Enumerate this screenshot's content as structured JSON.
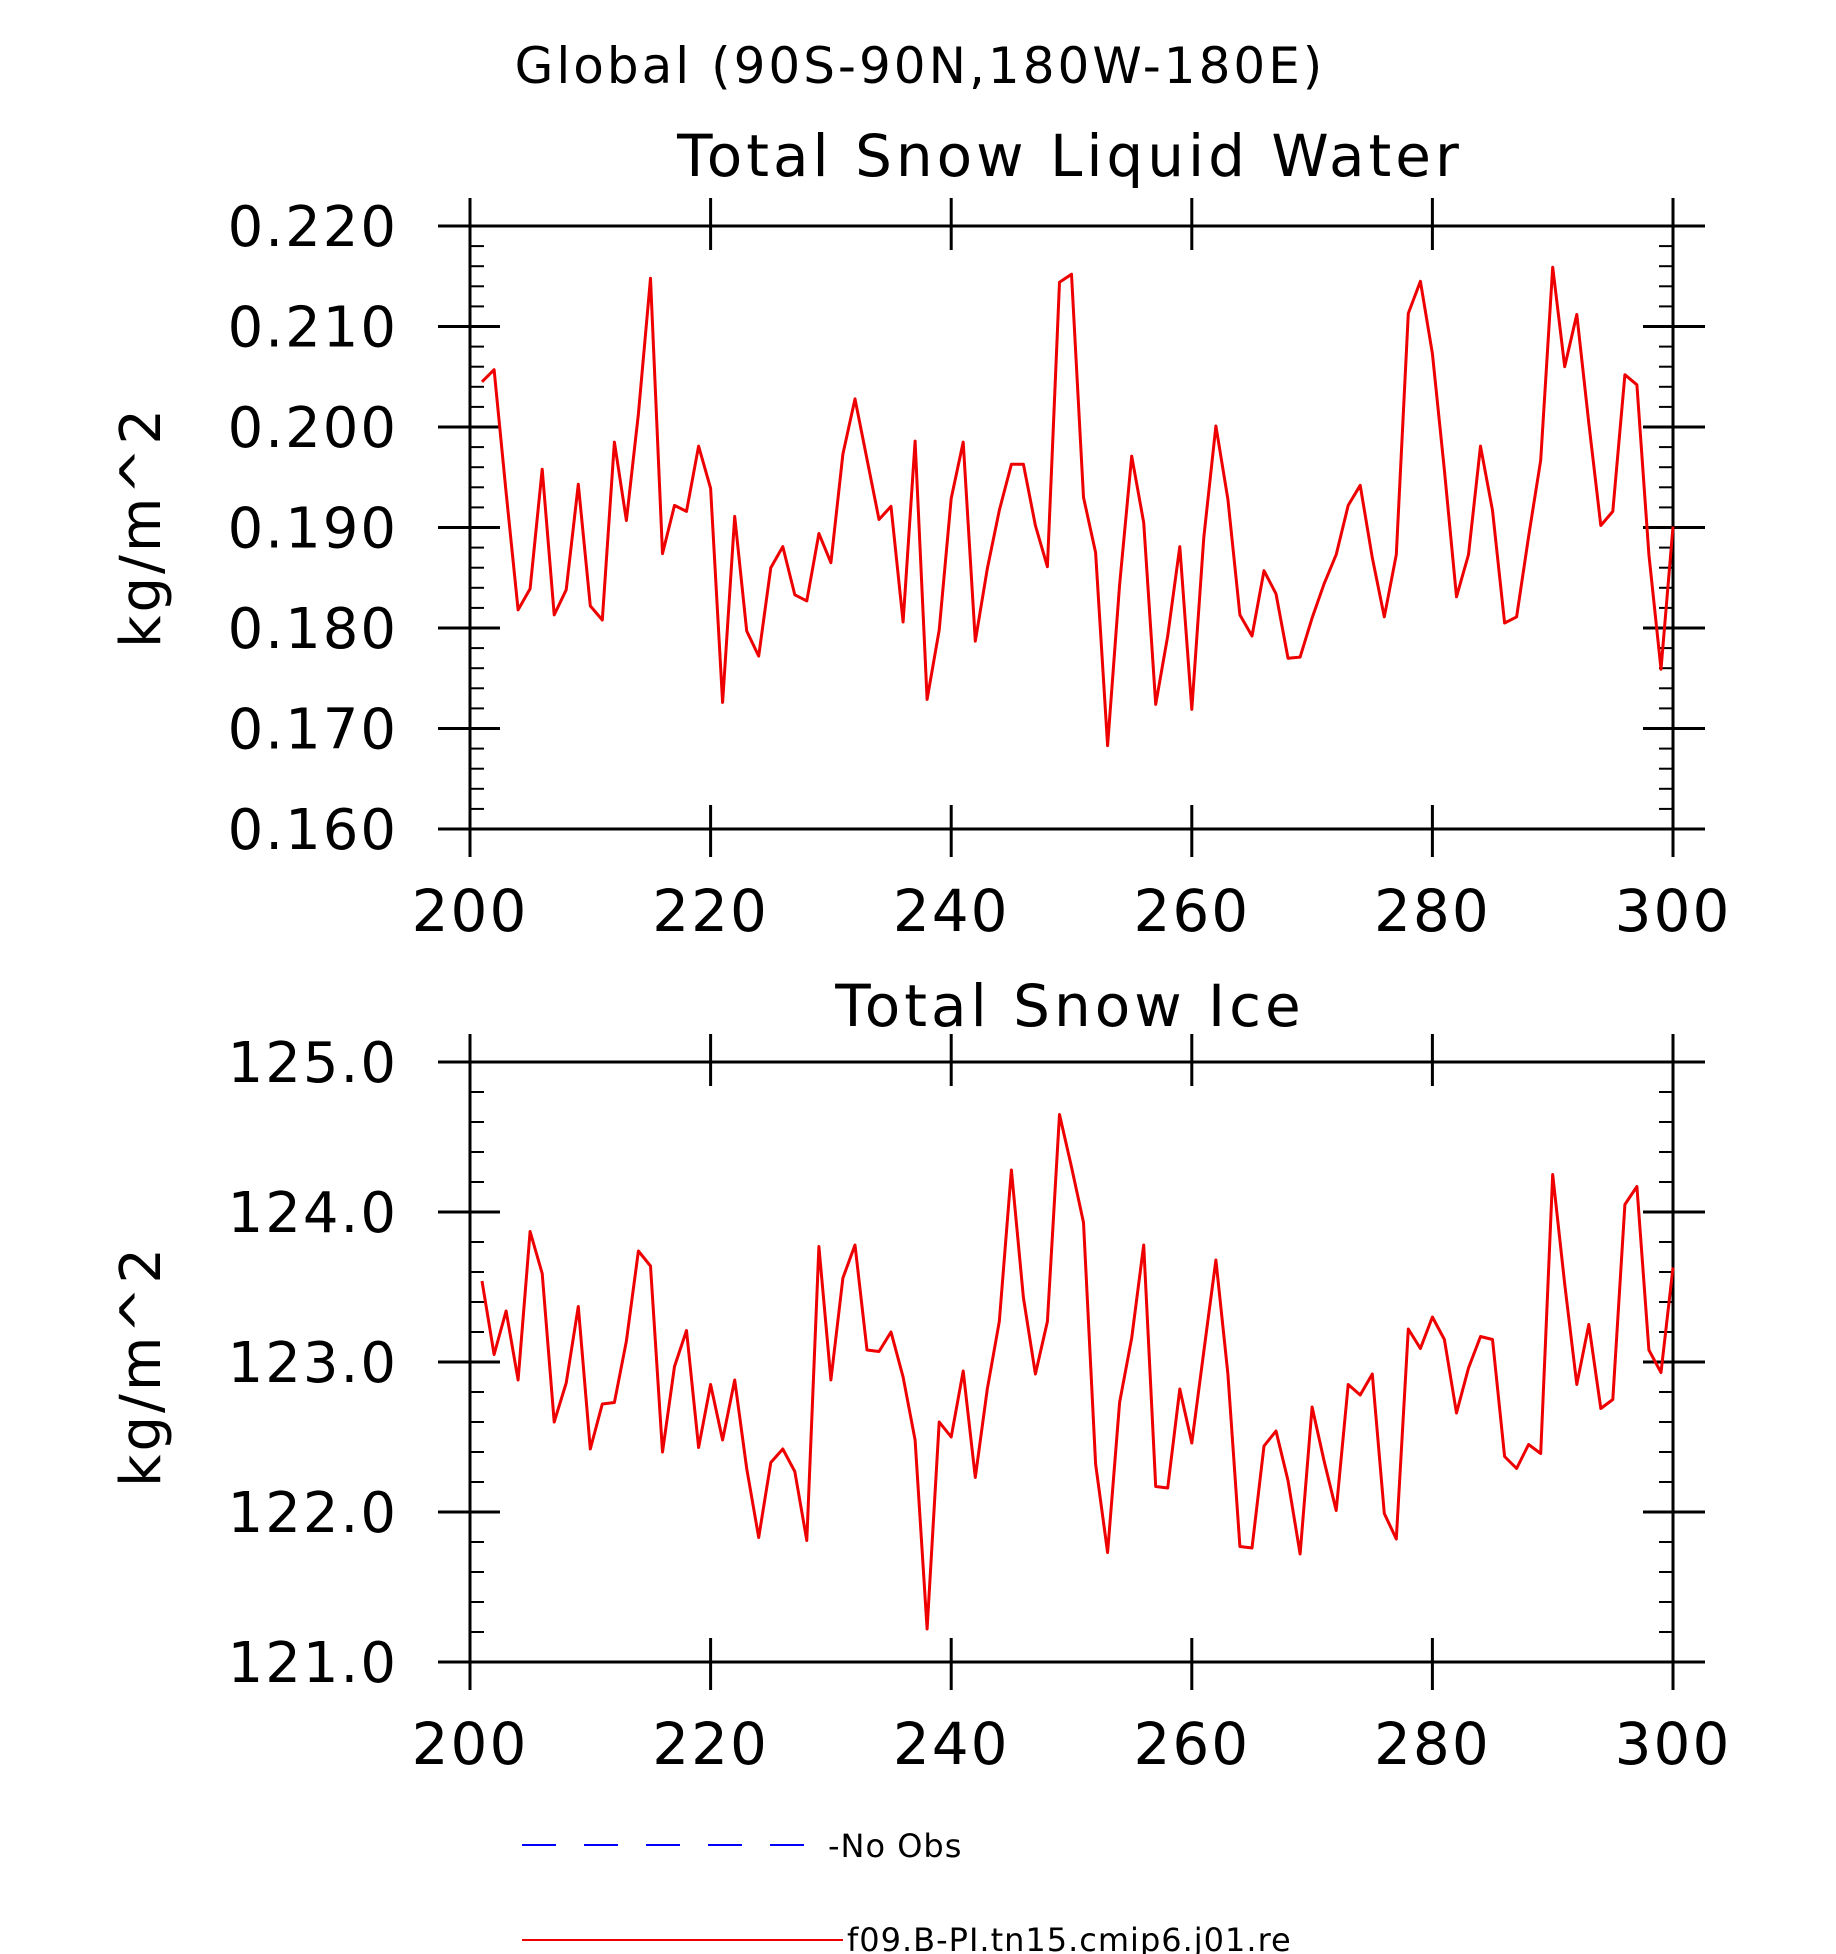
{
  "figure_title": "Global (90S-90N,180W-180E)",
  "chart_data": [
    {
      "type": "line",
      "title": "Total Snow Liquid Water",
      "xlabel": "",
      "ylabel": "kg/m^2",
      "xlim": [
        200,
        300
      ],
      "ylim": [
        0.16,
        0.22
      ],
      "xticks": [
        "200",
        "220",
        "240",
        "260",
        "280",
        "300"
      ],
      "yticks": [
        "0.160",
        "0.170",
        "0.180",
        "0.190",
        "0.200",
        "0.210",
        "0.220"
      ],
      "grid": false,
      "series": [
        {
          "name": "f09.B-PI.tn15.cmip6.j01.re",
          "color": "#ee0000",
          "x": [
            201,
            202,
            203,
            204,
            205,
            206,
            207,
            208,
            209,
            210,
            211,
            212,
            213,
            214,
            215,
            216,
            217,
            218,
            219,
            220,
            221,
            222,
            223,
            224,
            225,
            226,
            227,
            228,
            229,
            230,
            231,
            232,
            233,
            234,
            235,
            236,
            237,
            238,
            239,
            240,
            241,
            242,
            243,
            244,
            245,
            246,
            247,
            248,
            249,
            250,
            251,
            252,
            253,
            254,
            255,
            256,
            257,
            258,
            259,
            260,
            261,
            262,
            263,
            264,
            265,
            266,
            267,
            268,
            269,
            270,
            271,
            272,
            273,
            274,
            275,
            276,
            277,
            278,
            279,
            280,
            281,
            282,
            283,
            284,
            285,
            286,
            287,
            288,
            289,
            290,
            291,
            292,
            293,
            294,
            295,
            296,
            297,
            298,
            299,
            300
          ],
          "values": [
            0.2045,
            0.2057,
            0.1935,
            0.1818,
            0.1839,
            0.1958,
            0.1813,
            0.1838,
            0.1943,
            0.1822,
            0.1808,
            0.1985,
            0.1907,
            0.2013,
            0.2148,
            0.1874,
            0.1922,
            0.1916,
            0.1981,
            0.1939,
            0.1726,
            0.1911,
            0.1797,
            0.1772,
            0.186,
            0.1881,
            0.1833,
            0.1827,
            0.1894,
            0.1865,
            0.1973,
            0.2028,
            0.1968,
            0.1908,
            0.1921,
            0.1806,
            0.1986,
            0.1729,
            0.1798,
            0.1929,
            0.1985,
            0.1787,
            0.1859,
            0.1917,
            0.1963,
            0.1963,
            0.1902,
            0.1861,
            0.2144,
            0.2152,
            0.193,
            0.1875,
            0.1683,
            0.1843,
            0.1971,
            0.1905,
            0.1724,
            0.1792,
            0.1881,
            0.1719,
            0.189,
            0.2001,
            0.1928,
            0.1813,
            0.1792,
            0.1857,
            0.1834,
            0.177,
            0.1771,
            0.181,
            0.1844,
            0.1873,
            0.1922,
            0.1942,
            0.187,
            0.1811,
            0.1873,
            0.2113,
            0.2145,
            0.2073,
            0.1957,
            0.1831,
            0.1873,
            0.1981,
            0.1917,
            0.1805,
            0.1811,
            0.1891,
            0.1967,
            0.2159,
            0.206,
            0.2112,
            0.2004,
            0.1902,
            0.1916,
            0.2052,
            0.2042,
            0.1873,
            0.1759,
            0.1901
          ]
        }
      ]
    },
    {
      "type": "line",
      "title": "Total Snow Ice",
      "xlabel": "",
      "ylabel": "kg/m^2",
      "xlim": [
        200,
        300
      ],
      "ylim": [
        121.0,
        125.0
      ],
      "xticks": [
        "200",
        "220",
        "240",
        "260",
        "280",
        "300"
      ],
      "yticks": [
        "121.0",
        "122.0",
        "123.0",
        "124.0",
        "125.0"
      ],
      "grid": false,
      "series": [
        {
          "name": "f09.B-PI.tn15.cmip6.j01.re",
          "color": "#ee0000",
          "x": [
            201,
            202,
            203,
            204,
            205,
            206,
            207,
            208,
            209,
            210,
            211,
            212,
            213,
            214,
            215,
            216,
            217,
            218,
            219,
            220,
            221,
            222,
            223,
            224,
            225,
            226,
            227,
            228,
            229,
            230,
            231,
            232,
            233,
            234,
            235,
            236,
            237,
            238,
            239,
            240,
            241,
            242,
            243,
            244,
            245,
            246,
            247,
            248,
            249,
            250,
            251,
            252,
            253,
            254,
            255,
            256,
            257,
            258,
            259,
            260,
            261,
            262,
            263,
            264,
            265,
            266,
            267,
            268,
            269,
            270,
            271,
            272,
            273,
            274,
            275,
            276,
            277,
            278,
            279,
            280,
            281,
            282,
            283,
            284,
            285,
            286,
            287,
            288,
            289,
            290,
            291,
            292,
            293,
            294,
            295,
            296,
            297,
            298,
            299,
            300
          ],
          "values": [
            123.54,
            123.05,
            123.34,
            122.88,
            123.87,
            123.59,
            122.6,
            122.86,
            123.37,
            122.42,
            122.72,
            122.73,
            123.14,
            123.74,
            123.64,
            122.4,
            122.97,
            123.21,
            122.43,
            122.85,
            122.48,
            122.88,
            122.29,
            121.83,
            122.33,
            122.42,
            122.27,
            121.81,
            123.77,
            122.88,
            123.56,
            123.78,
            123.08,
            123.07,
            123.2,
            122.9,
            122.48,
            121.22,
            122.6,
            122.5,
            122.94,
            122.23,
            122.82,
            123.27,
            124.28,
            123.43,
            122.92,
            123.27,
            124.65,
            124.3,
            123.93,
            122.32,
            121.73,
            122.73,
            123.16,
            123.78,
            122.17,
            122.16,
            122.82,
            122.46,
            123.07,
            123.68,
            122.92,
            121.77,
            121.76,
            122.44,
            122.54,
            122.21,
            121.72,
            122.7,
            122.34,
            122.01,
            122.85,
            122.78,
            122.92,
            121.99,
            121.82,
            123.22,
            123.09,
            123.3,
            123.15,
            122.66,
            122.96,
            123.17,
            123.15,
            122.37,
            122.29,
            122.45,
            122.39,
            124.25,
            123.52,
            122.85,
            123.25,
            122.69,
            122.75,
            124.05,
            124.17,
            123.08,
            122.93,
            123.63
          ]
        }
      ]
    }
  ],
  "legend": {
    "items": [
      {
        "label": "-No Obs",
        "color": "#0000ff",
        "dashed": true
      },
      {
        "label": "f09.B-PI.tn15.cmip6.j01.re",
        "color": "#ee0000",
        "dashed": false
      }
    ]
  }
}
